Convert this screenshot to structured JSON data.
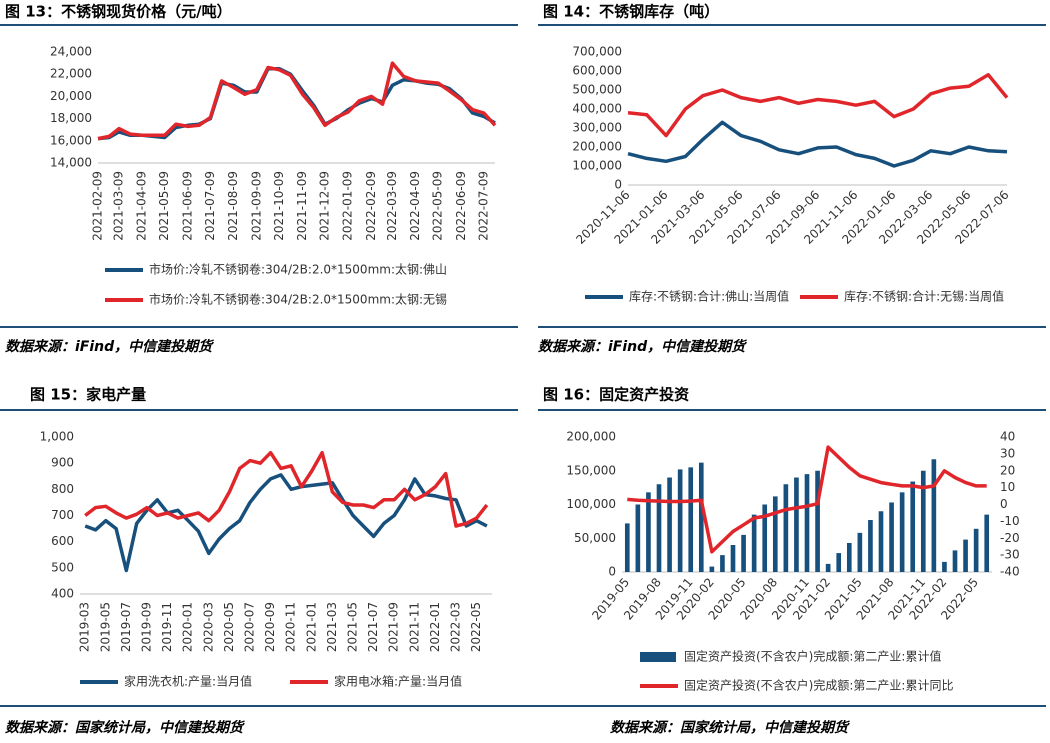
{
  "chart_data": [
    {
      "type": "line",
      "title": "图 13：不锈钢现货价格（元/吨）",
      "x": [
        "2021-02-09",
        "2021-02-24",
        "2021-03-09",
        "2021-03-24",
        "2021-04-09",
        "2021-04-24",
        "2021-05-09",
        "2021-05-24",
        "2021-06-09",
        "2021-06-24",
        "2021-07-09",
        "2021-07-24",
        "2021-08-09",
        "2021-08-24",
        "2021-09-09",
        "2021-09-24",
        "2021-10-09",
        "2021-10-24",
        "2021-11-09",
        "2021-11-24",
        "2021-12-09",
        "2021-12-24",
        "2022-01-09",
        "2022-01-24",
        "2022-02-09",
        "2022-02-24",
        "2022-03-09",
        "2022-03-24",
        "2022-04-09",
        "2022-04-24",
        "2022-05-09",
        "2022-05-24",
        "2022-06-09",
        "2022-06-24",
        "2022-07-09",
        "2022-07-24"
      ],
      "xticks": [
        "2021-02-09",
        "2021-03-09",
        "2021-04-09",
        "2021-05-09",
        "2021-06-09",
        "2021-07-09",
        "2021-08-09",
        "2021-09-09",
        "2021-10-09",
        "2021-11-09",
        "2021-12-09",
        "2022-01-09",
        "2022-02-09",
        "2022-03-09",
        "2022-04-09",
        "2022-05-09",
        "2022-06-09",
        "2022-07-09"
      ],
      "ylim": [
        14000,
        24000
      ],
      "yticks": [
        {
          "value": 14000,
          "label": "14,000"
        },
        {
          "value": 16000,
          "label": "16,000"
        },
        {
          "value": 18000,
          "label": "18,000"
        },
        {
          "value": 20000,
          "label": "20,000"
        },
        {
          "value": 22000,
          "label": "22,000"
        },
        {
          "value": 24000,
          "label": "24,000"
        }
      ],
      "series": [
        {
          "name": "市场价:冷轧不锈钢卷:304/2B:2.0*1500mm:太钢:佛山",
          "color": "#17507d",
          "values": [
            16200,
            16300,
            16800,
            16500,
            16500,
            16400,
            16300,
            17200,
            17400,
            17500,
            18000,
            21200,
            21000,
            20400,
            20400,
            22500,
            22500,
            22000,
            20500,
            19200,
            17500,
            18000,
            18800,
            19400,
            19800,
            19500,
            21000,
            21500,
            21400,
            21200,
            21100,
            20700,
            19800,
            18500,
            18200,
            17600
          ]
        },
        {
          "name": "市场价:冷轧不锈钢卷:304/2B:2.0*1500mm:太钢:无锡",
          "color": "#e0262b",
          "values": [
            16200,
            16400,
            17100,
            16600,
            16500,
            16500,
            16500,
            17500,
            17300,
            17400,
            18100,
            21400,
            20800,
            20200,
            20600,
            22600,
            22400,
            21900,
            20200,
            19000,
            17400,
            18100,
            18600,
            19600,
            20000,
            19300,
            23000,
            21800,
            21400,
            21300,
            21200,
            20500,
            19700,
            18800,
            18500,
            17400
          ]
        }
      ]
    },
    {
      "type": "line",
      "title": "图 14：不锈钢库存（吨）",
      "x": [
        "2020-11-06",
        "2020-12-06",
        "2021-01-06",
        "2021-02-06",
        "2021-03-06",
        "2021-04-06",
        "2021-05-06",
        "2021-06-06",
        "2021-07-06",
        "2021-08-06",
        "2021-09-06",
        "2021-10-06",
        "2021-11-06",
        "2021-12-06",
        "2022-01-06",
        "2022-02-06",
        "2022-03-06",
        "2022-04-06",
        "2022-05-06",
        "2022-06-06",
        "2022-07-06"
      ],
      "xticks": [
        "2020-11-06",
        "2021-01-06",
        "2021-03-06",
        "2021-05-06",
        "2021-07-06",
        "2021-09-06",
        "2021-11-06",
        "2022-01-06",
        "2022-03-06",
        "2022-05-06",
        "2022-07-06"
      ],
      "ylim": [
        0,
        700000
      ],
      "yticks": [
        0,
        {
          "value": 100000,
          "label": "100,000"
        },
        {
          "value": 200000,
          "label": "200,000"
        },
        {
          "value": 300000,
          "label": "300,000"
        },
        {
          "value": 400000,
          "label": "400,000"
        },
        {
          "value": 500000,
          "label": "500,000"
        },
        {
          "value": 600000,
          "label": "600,000"
        },
        {
          "value": 700000,
          "label": "700,000"
        }
      ],
      "series": [
        {
          "name": "库存:不锈钢:合计:佛山:当周值",
          "color": "#17507d",
          "values": [
            165000,
            140000,
            125000,
            150000,
            240000,
            330000,
            260000,
            230000,
            185000,
            165000,
            195000,
            200000,
            160000,
            140000,
            100000,
            130000,
            180000,
            165000,
            200000,
            180000,
            175000
          ]
        },
        {
          "name": "库存:不锈钢:合计:无锡:当周值",
          "color": "#e0262b",
          "values": [
            380000,
            370000,
            260000,
            400000,
            470000,
            500000,
            460000,
            440000,
            460000,
            430000,
            450000,
            440000,
            420000,
            440000,
            360000,
            400000,
            480000,
            510000,
            520000,
            580000,
            460000
          ]
        }
      ]
    },
    {
      "type": "line",
      "title": "图 15：家电产量",
      "categories": [
        "2019-03",
        null,
        "2019-05",
        null,
        "2019-07",
        null,
        "2019-09",
        null,
        "2019-11",
        null,
        "2020-01",
        null,
        "2020-03",
        null,
        "2020-05",
        null,
        "2020-07",
        null,
        "2020-09",
        null,
        "2020-11",
        null,
        "2021-01",
        null,
        "2021-03",
        null,
        "2021-05",
        null,
        "2021-07",
        null,
        "2021-09",
        null,
        "2021-11",
        null,
        "2022-01",
        null,
        "2022-03",
        null,
        "2022-05",
        null
      ],
      "ylim": [
        400,
        1000
      ],
      "yticks": [
        400,
        500,
        600,
        700,
        800,
        900,
        {
          "value": 1000,
          "label": "1,000"
        }
      ],
      "series": [
        {
          "name": "家用洗衣机:产量:当月值",
          "color": "#17507d",
          "values": [
            660,
            645,
            680,
            650,
            490,
            670,
            720,
            760,
            710,
            720,
            680,
            640,
            555,
            610,
            650,
            680,
            750,
            800,
            840,
            855,
            800,
            810,
            815,
            820,
            825,
            760,
            700,
            660,
            620,
            670,
            700,
            760,
            840,
            780,
            775,
            765,
            760,
            660,
            680,
            660
          ]
        },
        {
          "name": "家用电冰箱:产量:当月值",
          "color": "#e0262b",
          "values": [
            700,
            730,
            735,
            710,
            690,
            705,
            730,
            700,
            710,
            690,
            700,
            710,
            680,
            720,
            790,
            880,
            910,
            900,
            940,
            880,
            890,
            810,
            870,
            940,
            790,
            750,
            740,
            740,
            730,
            760,
            760,
            800,
            760,
            780,
            810,
            860,
            660,
            670,
            690,
            740
          ]
        }
      ]
    },
    {
      "type": "bar",
      "title": "图 16：固定资产投资",
      "categories": [
        "2019-05",
        null,
        null,
        "2019-08",
        null,
        null,
        "2019-11",
        null,
        "2020-02",
        null,
        null,
        "2020-05",
        null,
        null,
        "2020-08",
        null,
        null,
        "2020-11",
        null,
        "2021-02",
        null,
        null,
        "2021-05",
        null,
        null,
        "2021-08",
        null,
        null,
        "2021-11",
        null,
        "2022-02",
        null,
        null,
        "2022-05",
        null
      ],
      "ylim": [
        0,
        200000
      ],
      "yticks": [
        0,
        {
          "value": 50000,
          "label": "50,000"
        },
        {
          "value": 100000,
          "label": "100,000"
        },
        {
          "value": 150000,
          "label": "150,000"
        },
        {
          "value": 200000,
          "label": "200,000"
        }
      ],
      "y2lim": [
        -40,
        40
      ],
      "y2ticks": [
        -40,
        -30,
        -20,
        -10,
        0,
        10,
        20,
        30,
        40
      ],
      "series": [
        {
          "name": "固定资产投资(不含农户)完成额:第二产业:累计值",
          "color": "#17507d",
          "values": [
            72000,
            100000,
            118000,
            130000,
            140000,
            152000,
            155000,
            162000,
            8000,
            25000,
            40000,
            55000,
            85000,
            100000,
            112000,
            130000,
            140000,
            145000,
            150000,
            12000,
            28000,
            43000,
            58000,
            77000,
            90000,
            103000,
            118000,
            134000,
            150000,
            167000,
            15000,
            32000,
            48000,
            64000,
            85000
          ]
        },
        {
          "name": "固定资产投资(不含农户)完成额:第二产业:累计同比",
          "color": "#e0262b",
          "type": "line",
          "axis": "y2",
          "values": [
            3,
            2.5,
            2.2,
            2,
            1.8,
            1.8,
            2,
            2.5,
            -28,
            -22,
            -16,
            -12,
            -8,
            -7,
            -5,
            -3,
            -2,
            -1,
            0.5,
            34,
            28,
            22,
            17,
            15,
            13,
            12,
            11,
            11,
            10,
            11,
            20,
            16,
            13,
            11,
            11
          ]
        }
      ]
    }
  ],
  "sources": [
    "数据来源：iFind，中信建投期货",
    "数据来源：iFind，中信建投期货",
    "数据来源：国家统计局，中信建投期货",
    "数据来源：国家统计局，中信建投期货"
  ]
}
